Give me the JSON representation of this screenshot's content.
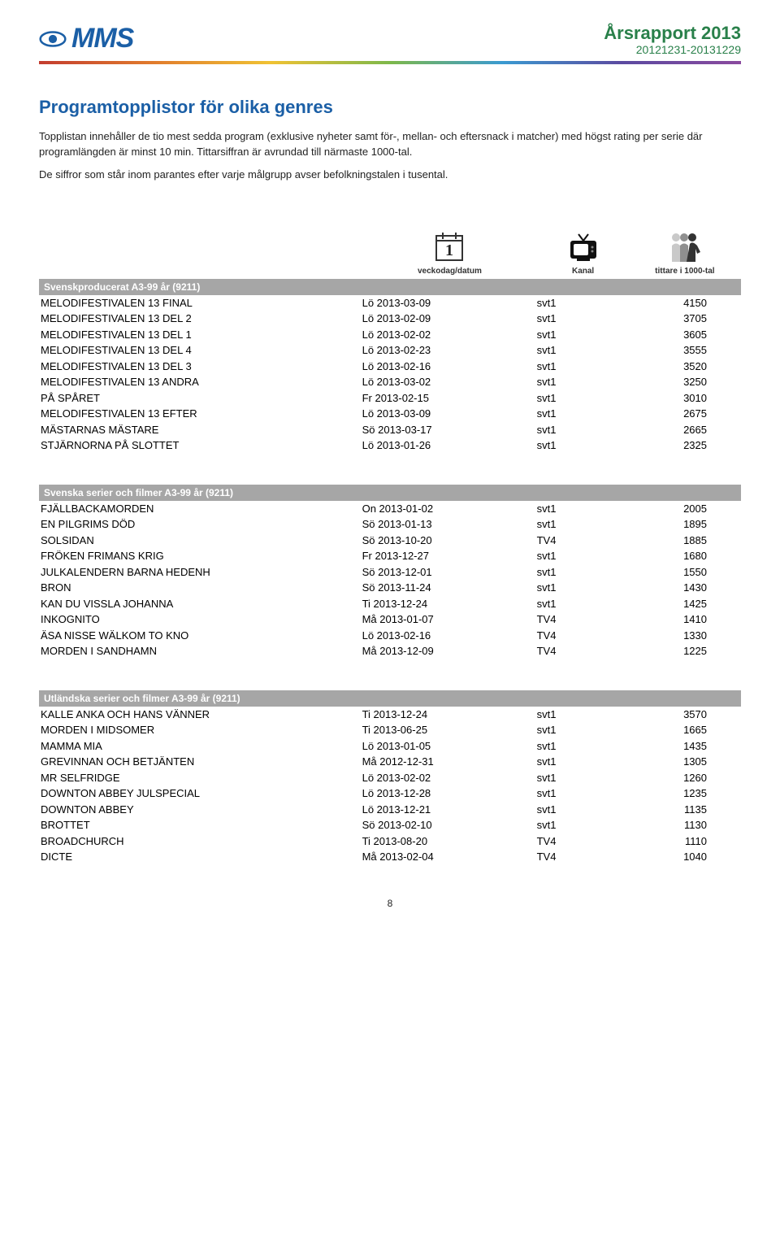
{
  "header": {
    "logo_text": "MMS",
    "title": "Årsrapport 2013",
    "subtitle": "20121231-20131229",
    "colors": {
      "logo": "#1b5fa6",
      "header_text": "#29804a"
    }
  },
  "section_title": "Programtopplistor för olika genres",
  "intro": [
    "Topplistan innehåller de tio mest sedda program (exklusive nyheter samt för-, mellan- och eftersnack i matcher) med högst rating per serie där programlängden är minst 10 min. Tittarsiffran är avrundad till närmaste 1000-tal.",
    "De siffror som står inom parantes efter varje målgrupp avser befolkningstalen i tusental."
  ],
  "icon_labels": {
    "date": "veckodag/datum",
    "channel": "Kanal",
    "viewers": "tittare i 1000-tal"
  },
  "tables": [
    {
      "header": "Svenskproducerat A3-99 år (9211)",
      "rows": [
        {
          "prog": "MELODIFESTIVALEN 13 FINAL",
          "date": "Lö 2013-03-09",
          "chan": "svt1",
          "view": "4150"
        },
        {
          "prog": "MELODIFESTIVALEN 13 DEL 2",
          "date": "Lö 2013-02-09",
          "chan": "svt1",
          "view": "3705"
        },
        {
          "prog": "MELODIFESTIVALEN 13 DEL 1",
          "date": "Lö 2013-02-02",
          "chan": "svt1",
          "view": "3605"
        },
        {
          "prog": "MELODIFESTIVALEN 13 DEL 4",
          "date": "Lö 2013-02-23",
          "chan": "svt1",
          "view": "3555"
        },
        {
          "prog": "MELODIFESTIVALEN 13 DEL 3",
          "date": "Lö 2013-02-16",
          "chan": "svt1",
          "view": "3520"
        },
        {
          "prog": "MELODIFESTIVALEN 13 ANDRA",
          "date": "Lö 2013-03-02",
          "chan": "svt1",
          "view": "3250"
        },
        {
          "prog": "PÅ SPÅRET",
          "date": "Fr 2013-02-15",
          "chan": "svt1",
          "view": "3010"
        },
        {
          "prog": "MELODIFESTIVALEN 13 EFTER",
          "date": "Lö 2013-03-09",
          "chan": "svt1",
          "view": "2675"
        },
        {
          "prog": "MÄSTARNAS MÄSTARE",
          "date": "Sö 2013-03-17",
          "chan": "svt1",
          "view": "2665"
        },
        {
          "prog": "STJÄRNORNA PÅ SLOTTET",
          "date": "Lö 2013-01-26",
          "chan": "svt1",
          "view": "2325"
        }
      ]
    },
    {
      "header": "Svenska serier och filmer A3-99 år (9211)",
      "rows": [
        {
          "prog": "FJÄLLBACKAMORDEN",
          "date": "On 2013-01-02",
          "chan": "svt1",
          "view": "2005"
        },
        {
          "prog": "EN PILGRIMS DÖD",
          "date": "Sö 2013-01-13",
          "chan": "svt1",
          "view": "1895"
        },
        {
          "prog": "SOLSIDAN",
          "date": "Sö 2013-10-20",
          "chan": "TV4",
          "view": "1885"
        },
        {
          "prog": "FRÖKEN FRIMANS KRIG",
          "date": "Fr 2013-12-27",
          "chan": "svt1",
          "view": "1680"
        },
        {
          "prog": "JULKALENDERN BARNA HEDENH",
          "date": "Sö 2013-12-01",
          "chan": "svt1",
          "view": "1550"
        },
        {
          "prog": "BRON",
          "date": "Sö 2013-11-24",
          "chan": "svt1",
          "view": "1430"
        },
        {
          "prog": "KAN DU VISSLA JOHANNA",
          "date": "Ti 2013-12-24",
          "chan": "svt1",
          "view": "1425"
        },
        {
          "prog": "INKOGNITO",
          "date": "Må 2013-01-07",
          "chan": "TV4",
          "view": "1410"
        },
        {
          "prog": "ÄSA NISSE WÄLKOM TO KNO",
          "date": "Lö 2013-02-16",
          "chan": "TV4",
          "view": "1330"
        },
        {
          "prog": "MORDEN I SANDHAMN",
          "date": "Må 2013-12-09",
          "chan": "TV4",
          "view": "1225"
        }
      ]
    },
    {
      "header": "Utländska serier och filmer A3-99 år (9211)",
      "rows": [
        {
          "prog": "KALLE ANKA OCH HANS VÄNNER",
          "date": "Ti 2013-12-24",
          "chan": "svt1",
          "view": "3570"
        },
        {
          "prog": "MORDEN I MIDSOMER",
          "date": "Ti 2013-06-25",
          "chan": "svt1",
          "view": "1665"
        },
        {
          "prog": "MAMMA MIA",
          "date": "Lö 2013-01-05",
          "chan": "svt1",
          "view": "1435"
        },
        {
          "prog": "GREVINNAN OCH BETJÄNTEN",
          "date": "Må 2012-12-31",
          "chan": "svt1",
          "view": "1305"
        },
        {
          "prog": "MR SELFRIDGE",
          "date": "Lö 2013-02-02",
          "chan": "svt1",
          "view": "1260"
        },
        {
          "prog": "DOWNTON ABBEY JULSPECIAL",
          "date": "Lö 2013-12-28",
          "chan": "svt1",
          "view": "1235"
        },
        {
          "prog": "DOWNTON ABBEY",
          "date": "Lö 2013-12-21",
          "chan": "svt1",
          "view": "1135"
        },
        {
          "prog": "BROTTET",
          "date": "Sö 2013-02-10",
          "chan": "svt1",
          "view": "1130"
        },
        {
          "prog": "BROADCHURCH",
          "date": "Ti 2013-08-20",
          "chan": "TV4",
          "view": "1110"
        },
        {
          "prog": "DICTE",
          "date": "Må 2013-02-04",
          "chan": "TV4",
          "view": "1040"
        }
      ]
    }
  ],
  "page_number": "8"
}
